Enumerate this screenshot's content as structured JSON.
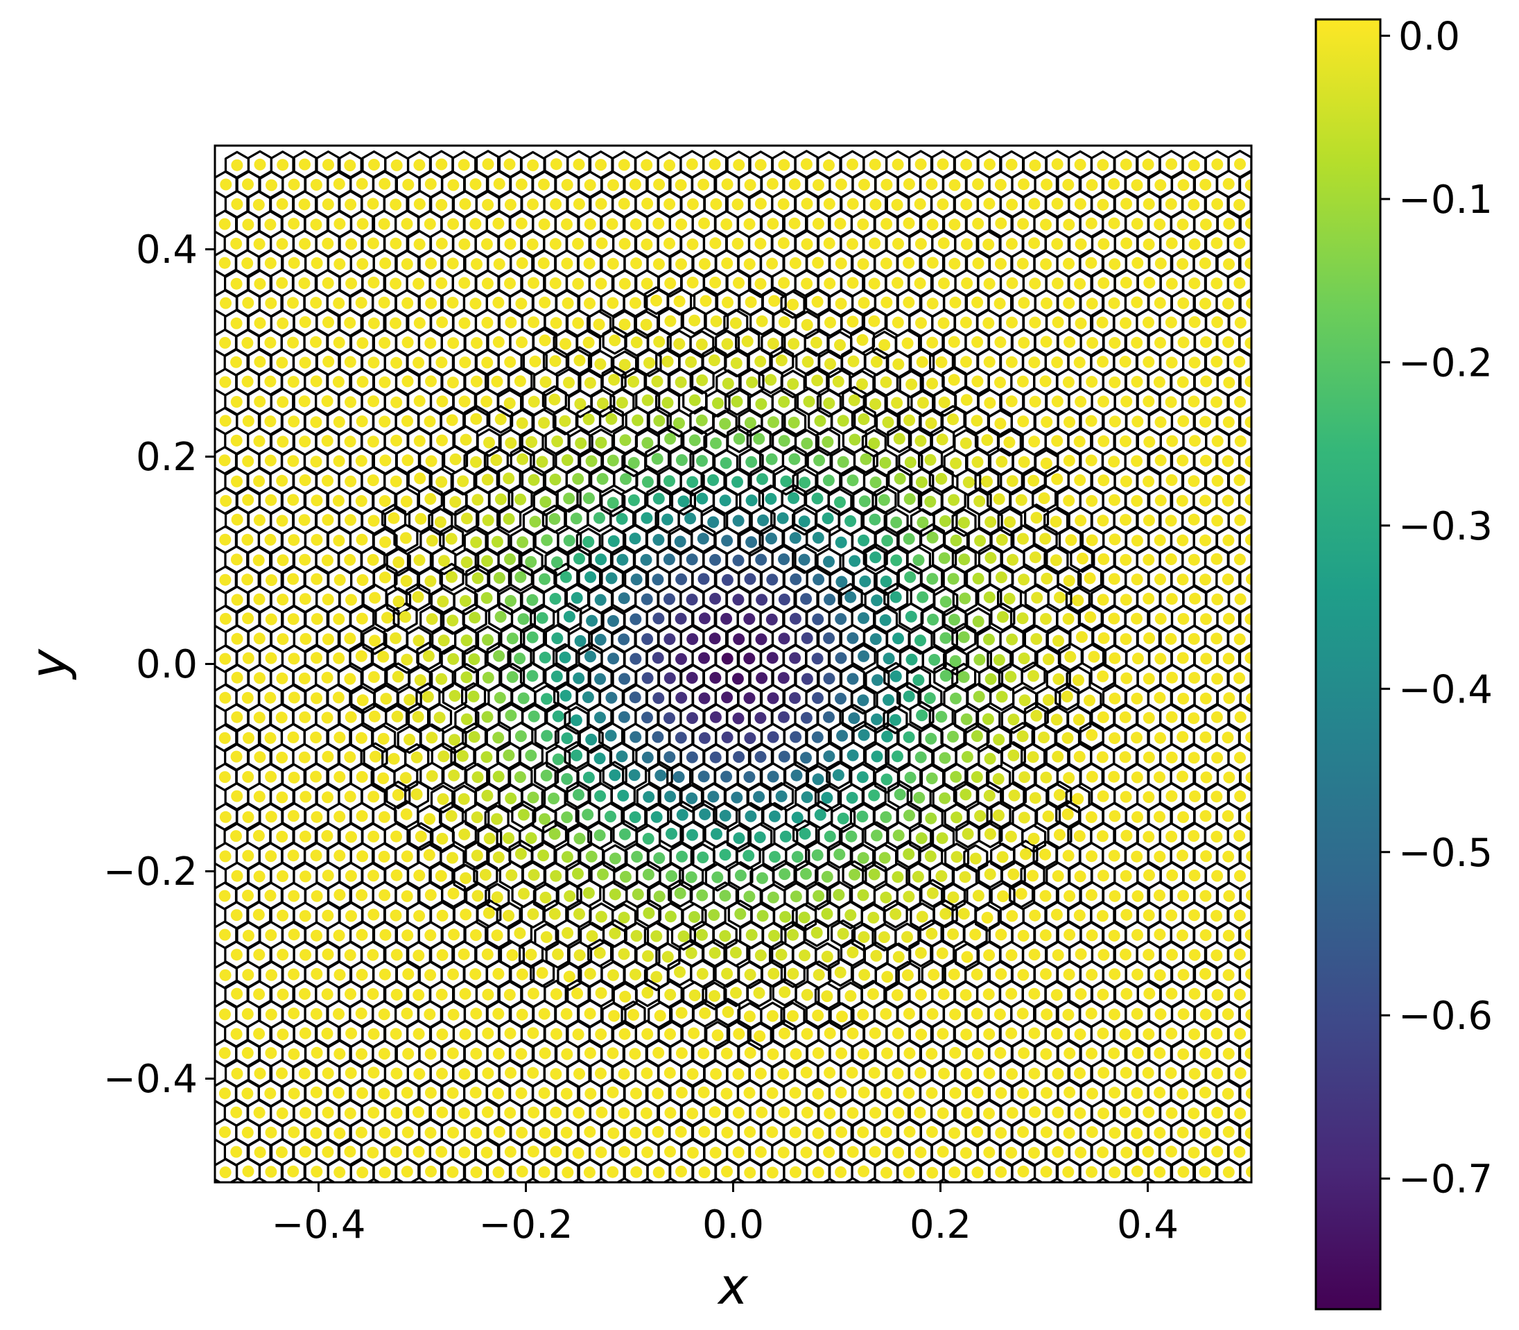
{
  "chart_data": [
    {
      "type": "scatter",
      "title": "",
      "xlabel": "x",
      "ylabel": "y",
      "xlim": [
        -0.5,
        0.5
      ],
      "ylim": [
        -0.5,
        0.5
      ],
      "x_ticks": [
        -0.4,
        -0.2,
        0.0,
        0.2,
        0.4
      ],
      "x_tick_labels": [
        "−0.4",
        "−0.2",
        "0.0",
        "0.2",
        "0.4"
      ],
      "y_ticks": [
        -0.4,
        -0.2,
        0.0,
        0.2,
        0.4
      ],
      "y_tick_labels": [
        "−0.4",
        "−0.2",
        "0.0",
        "0.2",
        "0.4"
      ],
      "aspect": "equal",
      "grid": false,
      "description_of_marks": "Voronoi tessellation of roughly 2500 points in the unit square centered at the origin; each point is colored by a scalar value. Black polygon edges outline the cells.",
      "field": {
        "center": [
          0.0,
          0.0
        ],
        "min_value_at_center": -0.77,
        "value_near_edges": 0.0,
        "radial_profile": [
          {
            "r": 0.0,
            "value": -0.77
          },
          {
            "r": 0.05,
            "value": -0.7
          },
          {
            "r": 0.1,
            "value": -0.55
          },
          {
            "r": 0.15,
            "value": -0.38
          },
          {
            "r": 0.2,
            "value": -0.2
          },
          {
            "r": 0.25,
            "value": -0.08
          },
          {
            "r": 0.3,
            "value": -0.02
          },
          {
            "r": 0.35,
            "value": 0.0
          }
        ],
        "point_spacing": 0.022
      },
      "colormap": {
        "name": "viridis",
        "stops": [
          "#440154",
          "#482878",
          "#3e4989",
          "#31688e",
          "#26828e",
          "#1f9e89",
          "#35b779",
          "#6ece58",
          "#b5de2b",
          "#fde725"
        ]
      },
      "colorbar": {
        "vmin": -0.78,
        "vmax": 0.01,
        "ticks": [
          0.0,
          -0.1,
          -0.2,
          -0.3,
          -0.4,
          -0.5,
          -0.6,
          -0.7
        ],
        "tick_labels": [
          "0.0",
          "−0.1",
          "−0.2",
          "−0.3",
          "−0.4",
          "−0.5",
          "−0.6",
          "−0.7"
        ],
        "placement": "right"
      }
    }
  ]
}
